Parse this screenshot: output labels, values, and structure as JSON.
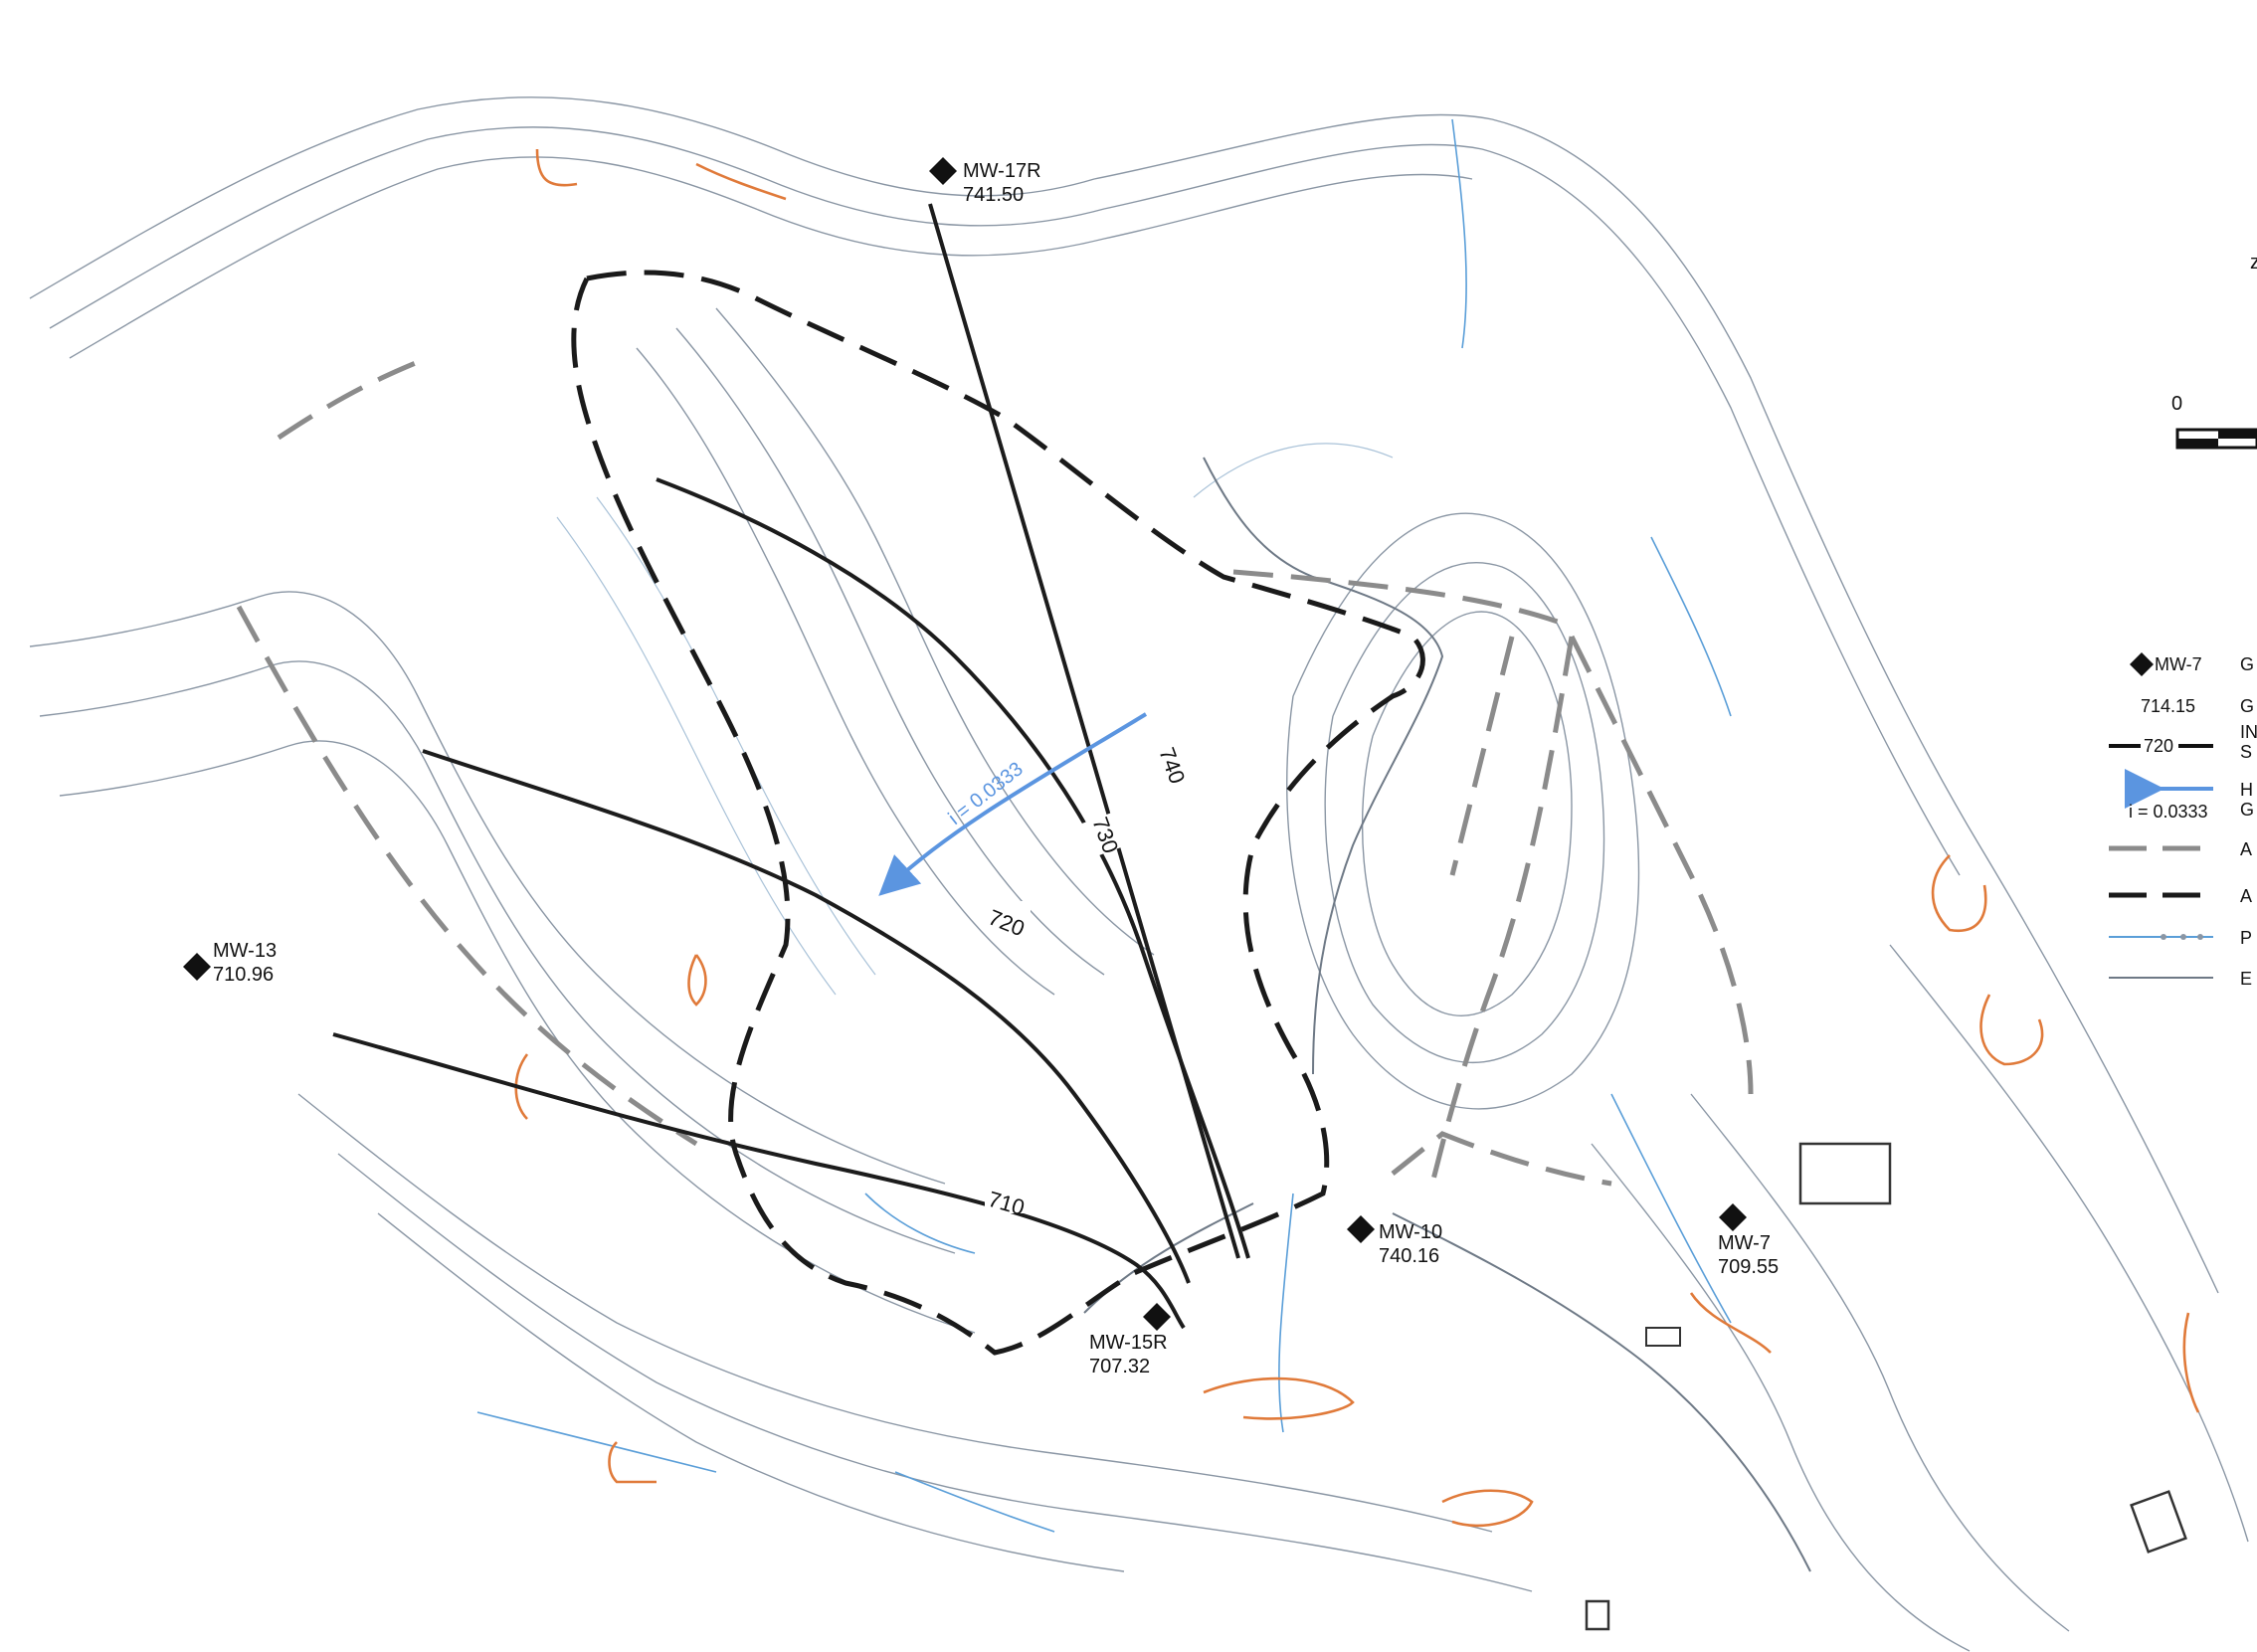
{
  "scale_bar": {
    "zero_label": "0"
  },
  "wells": [
    {
      "id": "MW-17R",
      "elev": "741.50"
    },
    {
      "id": "MW-13",
      "elev": "710.96"
    },
    {
      "id": "MW-10",
      "elev": "740.16"
    },
    {
      "id": "MW-15R",
      "elev": "707.32"
    },
    {
      "id": "MW-7",
      "elev": "709.55"
    }
  ],
  "gw_contours": [
    "740",
    "730",
    "720",
    "710"
  ],
  "gradient": {
    "label": "i = 0.0333"
  },
  "legend": {
    "well_sym": "MW-7",
    "elev_sample": "714.15",
    "contour_sample": "720",
    "gradient_sample": "i = 0.0333",
    "item_letters": [
      "G",
      "G",
      "IN",
      "S",
      "H",
      "G",
      "A",
      "A",
      "P",
      "E"
    ]
  },
  "colors": {
    "topo": "#8a96a4",
    "stream": "#5a9ed8",
    "orange": "#e07a3a",
    "gradient_arrow": "#5b95e0",
    "gw_line": "#1c1c1c"
  }
}
